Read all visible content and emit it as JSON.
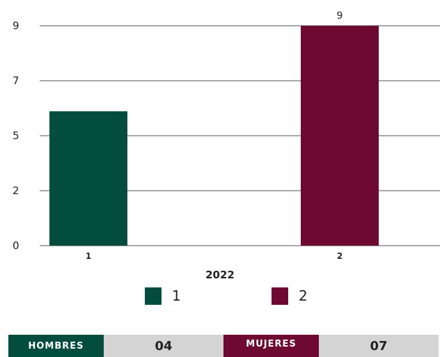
{
  "chart_data": {
    "type": "bar",
    "categories": [
      "1",
      "2"
    ],
    "values": [
      5.5,
      9
    ],
    "bar_colors": [
      "#034d3f",
      "#6e0a31"
    ],
    "data_labels": [
      "",
      "9"
    ],
    "yticks": [
      "0",
      "2",
      "5",
      "7",
      "9"
    ],
    "ylim": [
      0,
      9
    ],
    "xlabel": "2022",
    "legend": [
      {
        "label": "1",
        "color": "#034d3f"
      },
      {
        "label": "2",
        "color": "#6e0a31"
      }
    ],
    "legend_position": "bottom",
    "grid": true
  },
  "stats": {
    "men_label": "HOMBRES",
    "men_value": "04",
    "women_label": "MUJERES",
    "women_value": "07",
    "men_color": "#034d3f",
    "women_color": "#6e0a31"
  }
}
